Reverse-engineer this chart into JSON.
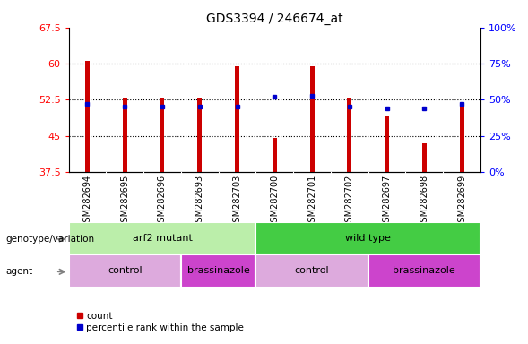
{
  "title": "GDS3394 / 246674_at",
  "samples": [
    "GSM282694",
    "GSM282695",
    "GSM282696",
    "GSM282693",
    "GSM282703",
    "GSM282700",
    "GSM282701",
    "GSM282702",
    "GSM282697",
    "GSM282698",
    "GSM282699"
  ],
  "count_values": [
    60.5,
    53.0,
    53.0,
    53.0,
    59.5,
    44.5,
    59.5,
    53.0,
    49.0,
    43.5,
    51.5
  ],
  "percentile_values": [
    47,
    45,
    45,
    45,
    45,
    52,
    53,
    45,
    44,
    44,
    47
  ],
  "ymin": 37.5,
  "ymax": 67.5,
  "yticks_left": [
    37.5,
    45.0,
    52.5,
    60.0,
    67.5
  ],
  "yticks_right": [
    0,
    25,
    50,
    75,
    100
  ],
  "bar_color": "#cc0000",
  "square_color": "#0000cc",
  "bar_width": 0.12,
  "genotype_groups": [
    {
      "label": "arf2 mutant",
      "start": 0,
      "end": 4,
      "color": "#bbeeaa"
    },
    {
      "label": "wild type",
      "start": 5,
      "end": 10,
      "color": "#44cc44"
    }
  ],
  "agent_groups": [
    {
      "label": "control",
      "start": 0,
      "end": 2,
      "color": "#ddaadd"
    },
    {
      "label": "brassinazole",
      "start": 3,
      "end": 4,
      "color": "#cc44cc"
    },
    {
      "label": "control",
      "start": 5,
      "end": 7,
      "color": "#ddaadd"
    },
    {
      "label": "brassinazole",
      "start": 8,
      "end": 10,
      "color": "#cc44cc"
    }
  ],
  "legend_count_label": "count",
  "legend_percentile_label": "percentile rank within the sample"
}
